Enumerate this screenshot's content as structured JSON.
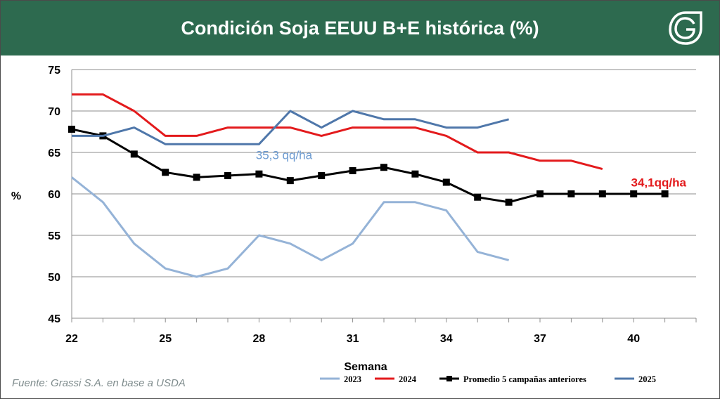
{
  "header": {
    "title": "Condición Soja EEUU B+E histórica (%)",
    "logo_icon": "leaf-g-logo-icon",
    "background": "#2d6a4f"
  },
  "footer": {
    "source": "Fuente: Grassi S.A. en base a USDA"
  },
  "chart_data": {
    "type": "line",
    "title": "Condición Soja EEUU B+E histórica (%)",
    "xlabel": "Semana",
    "ylabel": "%",
    "xlim": [
      22,
      41
    ],
    "ylim": [
      45,
      75
    ],
    "x_ticks": [
      22,
      25,
      28,
      31,
      34,
      37,
      40
    ],
    "y_ticks": [
      45,
      50,
      55,
      60,
      65,
      70,
      75
    ],
    "grid": "horizontal",
    "legend_position": "bottom-right",
    "series": [
      {
        "name": "2023",
        "color": "#95b3d7",
        "marker": "none",
        "x": [
          22,
          23,
          24,
          25,
          26,
          27,
          28,
          29,
          30,
          31,
          32,
          33,
          34,
          35,
          36
        ],
        "y": [
          62,
          59,
          54,
          51,
          50,
          51,
          55,
          54,
          52,
          54,
          59,
          59,
          58,
          53,
          52
        ]
      },
      {
        "name": "2024",
        "color": "#e31a1c",
        "marker": "none",
        "x": [
          22,
          23,
          24,
          25,
          26,
          27,
          28,
          29,
          30,
          31,
          32,
          33,
          34,
          35,
          36,
          37,
          38,
          39
        ],
        "y": [
          72,
          72,
          70,
          67,
          67,
          68,
          68,
          68,
          67,
          68,
          68,
          68,
          67,
          65,
          65,
          64,
          64,
          63
        ]
      },
      {
        "name": "Promedio 5 campañas anteriores",
        "color": "#000000",
        "marker": "square",
        "x": [
          22,
          23,
          24,
          25,
          26,
          27,
          28,
          29,
          30,
          31,
          32,
          33,
          34,
          35,
          36,
          37,
          38,
          39,
          40,
          41
        ],
        "y": [
          67.8,
          67,
          64.8,
          62.6,
          62,
          62.2,
          62.4,
          61.6,
          62.2,
          62.8,
          63.2,
          62.4,
          61.4,
          59.6,
          59,
          60,
          60,
          60,
          60,
          60
        ]
      },
      {
        "name": "2025",
        "color": "#4f77aa",
        "marker": "none",
        "x": [
          22,
          23,
          24,
          25,
          26,
          27,
          28,
          29,
          30,
          31,
          32,
          33,
          34,
          35,
          36
        ],
        "y": [
          67,
          67,
          68,
          66,
          66,
          66,
          66,
          70,
          68,
          70,
          69,
          69,
          68,
          68,
          69
        ]
      }
    ],
    "annotations": [
      {
        "text": "35,3 qq/ha",
        "x": 28.8,
        "y": 64.2,
        "color": "#6d9bd1"
      },
      {
        "text": "34,1qq/ha",
        "x": 40.8,
        "y": 60.9,
        "color": "#e31a1c"
      }
    ]
  }
}
